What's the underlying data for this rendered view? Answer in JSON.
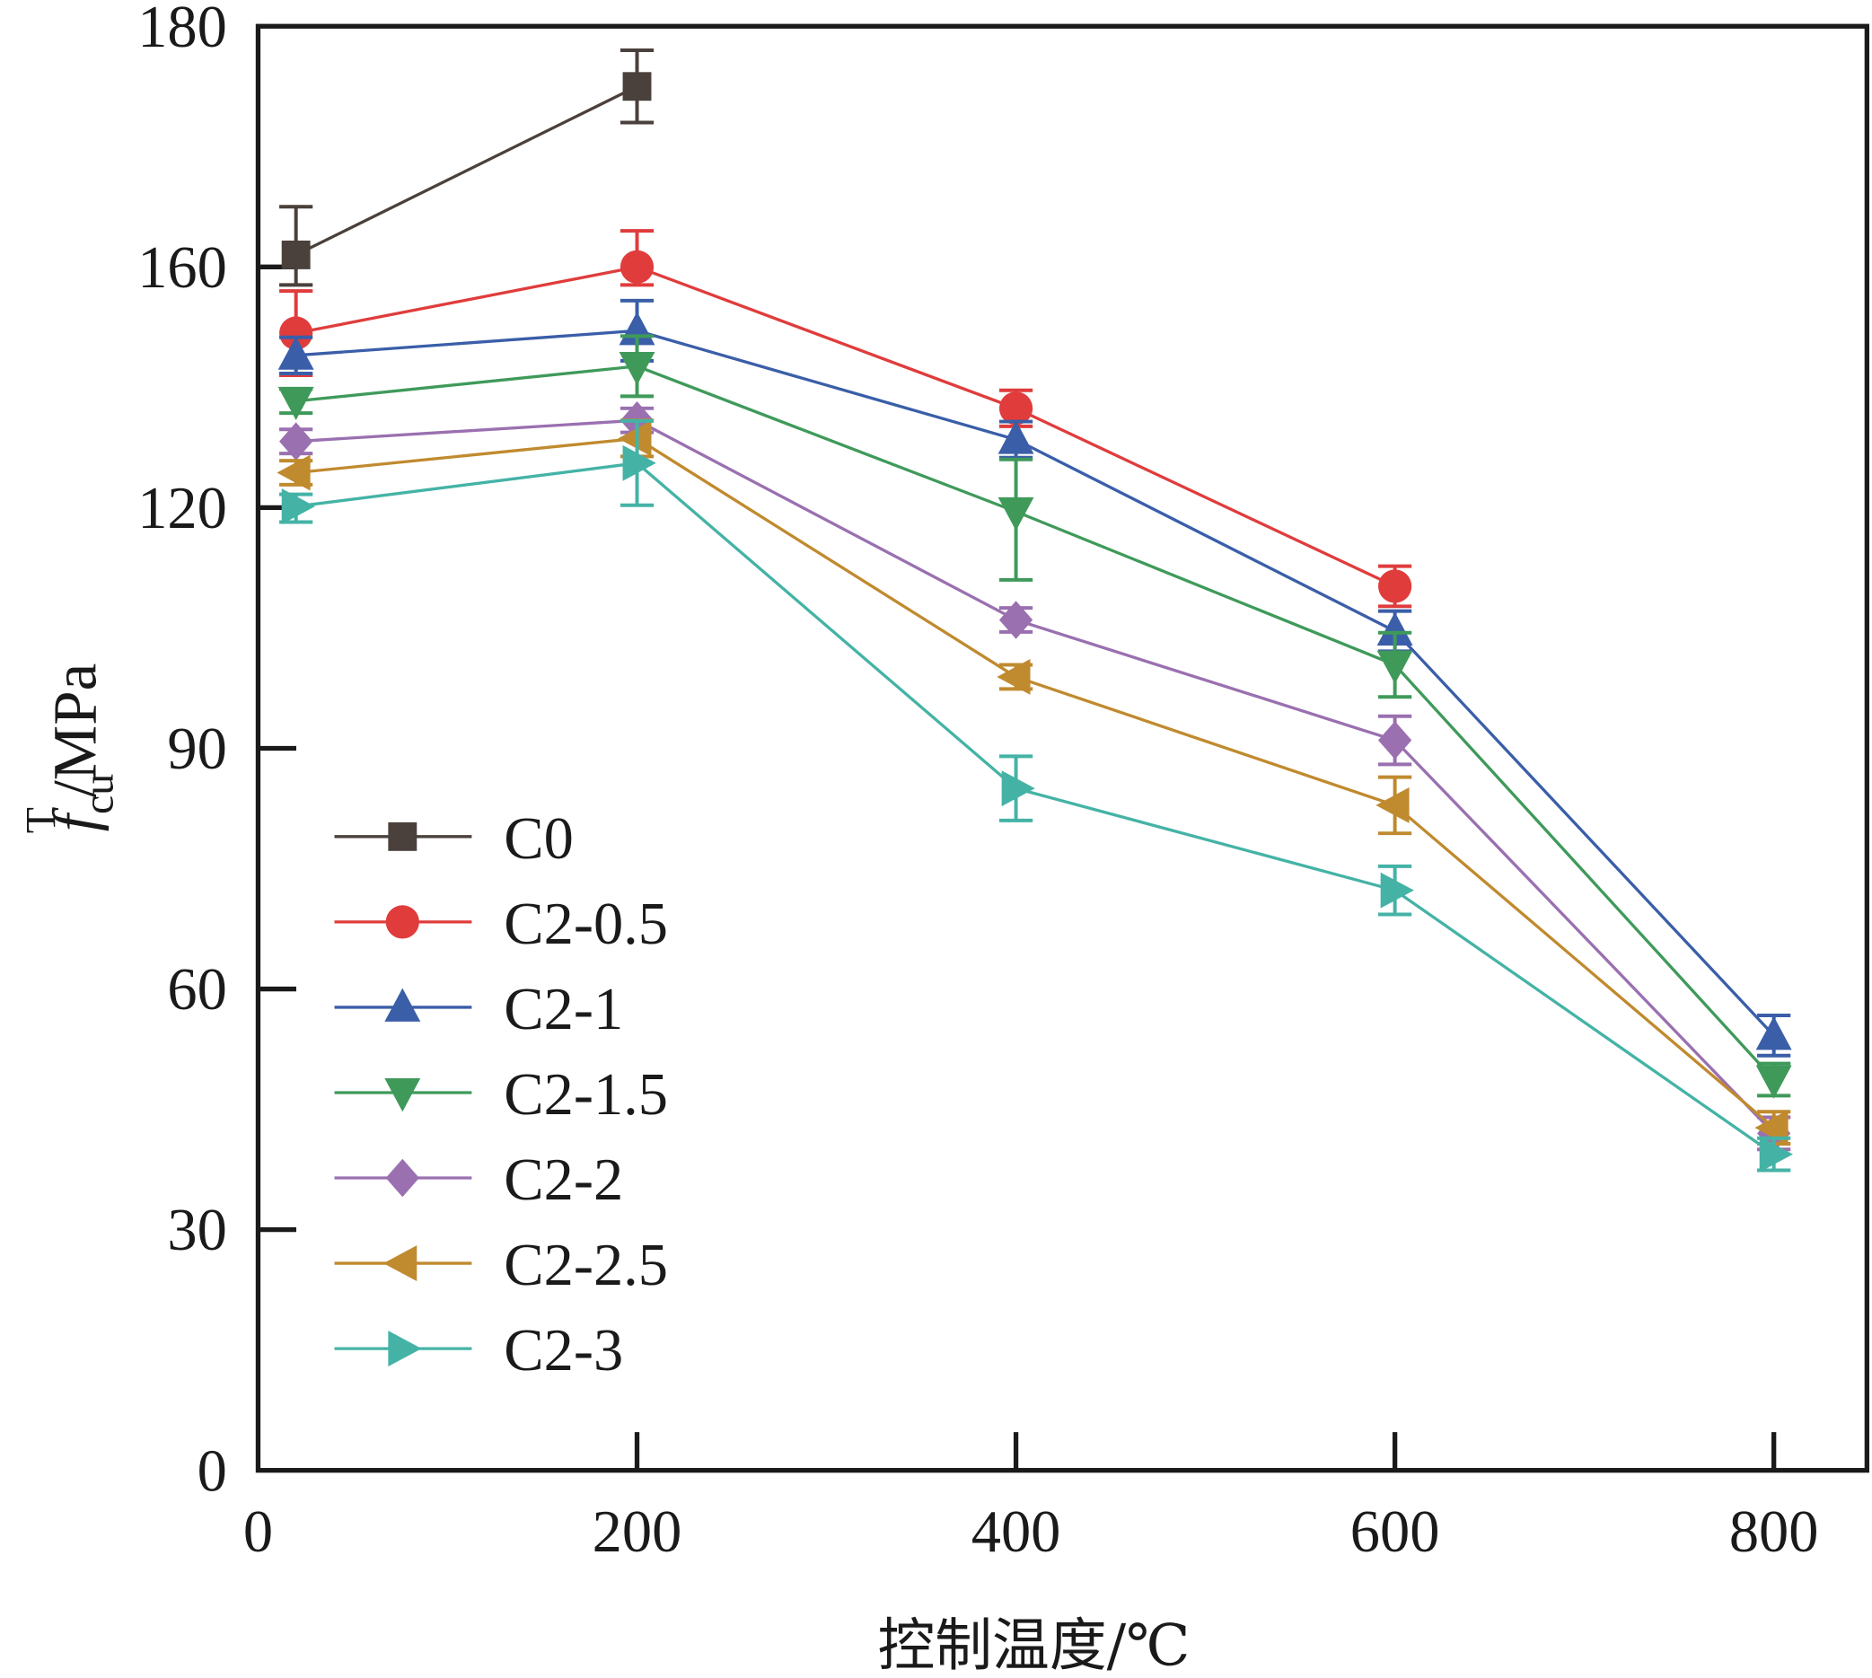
{
  "chart_data": {
    "type": "line",
    "title": "",
    "xlabel": "控制温度/℃",
    "ylabel": {
      "main": "f",
      "superscript": "T",
      "subscript": "cu",
      "unit": "/MPa"
    },
    "xlim": [
      0,
      850
    ],
    "x_ticks": [
      0,
      200,
      400,
      600,
      800
    ],
    "x_tick_labels": [
      "0",
      "200",
      "400",
      "600",
      "800"
    ],
    "y_ticks": [
      0,
      30,
      60,
      90,
      120,
      160,
      180
    ],
    "y_tick_labels": [
      "0",
      "30",
      "60",
      "90",
      "120",
      "160",
      "180"
    ],
    "y_axis_note": "tick marks evenly spaced; values mapped piecewise between labeled ticks",
    "grid": false,
    "legend_position": "left-center",
    "series": [
      {
        "name": "C0",
        "color": "#4a403c",
        "marker": "square",
        "x": [
          20,
          200
        ],
        "y": [
          161,
          175
        ],
        "err": [
          4,
          3
        ]
      },
      {
        "name": "C2-0.5",
        "color": "#e03c3c",
        "marker": "circle",
        "x": [
          20,
          200,
          400,
          600
        ],
        "y": [
          149,
          160,
          136.5,
          110.2
        ],
        "err": [
          7,
          3,
          3,
          2.5
        ]
      },
      {
        "name": "C2-1",
        "color": "#3a5ea8",
        "marker": "triangle-up",
        "x": [
          20,
          200,
          400,
          600,
          800
        ],
        "y": [
          145.3,
          149.4,
          131.3,
          104.6,
          54.2
        ],
        "err": [
          3,
          5,
          3,
          2.5,
          2.5
        ]
      },
      {
        "name": "C2-1.5",
        "color": "#3f9a5a",
        "marker": "triangle-down",
        "x": [
          20,
          200,
          400,
          600,
          800
        ],
        "y": [
          137.7,
          143.5,
          119.5,
          100.4,
          48.7
        ],
        "err": [
          2,
          5,
          8.5,
          4,
          2
        ]
      },
      {
        "name": "C2-2",
        "color": "#9a70b0",
        "marker": "diamond",
        "x": [
          20,
          200,
          400,
          600,
          800
        ],
        "y": [
          131,
          134.5,
          106,
          91,
          42
        ],
        "err": [
          2,
          2,
          1.5,
          3,
          2
        ]
      },
      {
        "name": "C2-2.5",
        "color": "#c08a2e",
        "marker": "triangle-left",
        "x": [
          20,
          200,
          400,
          600,
          800
        ],
        "y": [
          125.8,
          131.5,
          98.9,
          82.9,
          42.7
        ],
        "err": [
          2,
          3,
          1.5,
          3.5,
          2
        ]
      },
      {
        "name": "C2-3",
        "color": "#44b3a6",
        "marker": "triangle-right",
        "x": [
          20,
          200,
          400,
          600,
          800
        ],
        "y": [
          120.2,
          127.4,
          85,
          72.3,
          39.4
        ],
        "err": [
          2,
          7,
          4,
          3,
          2
        ]
      }
    ]
  }
}
